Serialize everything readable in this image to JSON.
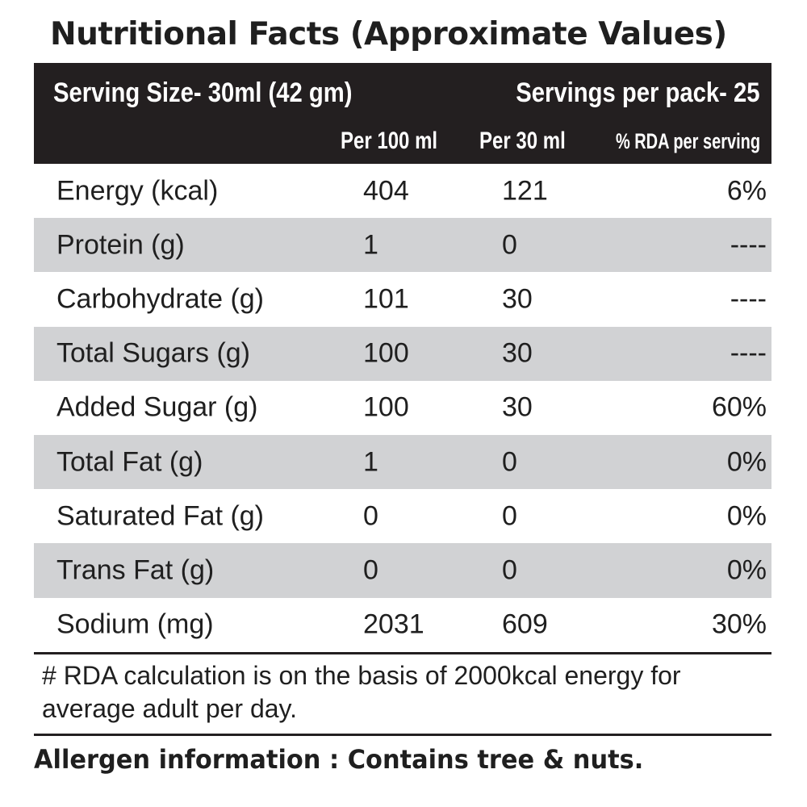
{
  "title": "Nutritional Facts (Approximate Values)",
  "header": {
    "serving_size": "Serving Size-  30ml (42 gm)",
    "servings_per_pack": "Servings per pack- 25",
    "columns": [
      "Per 100 ml",
      "Per 30 ml",
      "% RDA per serving"
    ]
  },
  "rows": [
    {
      "name": "Energy (kcal)",
      "per100": "404",
      "per30": "121",
      "rda": "6%"
    },
    {
      "name": "Protein (g)",
      "per100": "1",
      "per30": "0",
      "rda": "----"
    },
    {
      "name": "Carbohydrate (g)",
      "per100": "101",
      "per30": "30",
      "rda": "----"
    },
    {
      "name": "Total Sugars (g)",
      "per100": "100",
      "per30": "30",
      "rda": "----"
    },
    {
      "name": "Added Sugar (g)",
      "per100": "100",
      "per30": "30",
      "rda": "60%"
    },
    {
      "name": "Total Fat (g)",
      "per100": "1",
      "per30": "0",
      "rda": "0%"
    },
    {
      "name": "Saturated Fat (g)",
      "per100": "0",
      "per30": "0",
      "rda": "0%"
    },
    {
      "name": "Trans Fat (g)",
      "per100": "0",
      "per30": "0",
      "rda": "0%"
    },
    {
      "name": "Sodium (mg)",
      "per100": "2031",
      "per30": "609",
      "rda": "30%"
    }
  ],
  "footnote": "# RDA calculation is on the basis of 2000kcal energy for average adult per day.",
  "allergen": "Allergen information : Contains tree & nuts.",
  "colors": {
    "header_bg": "#231f20",
    "shade": "#d1d2d4"
  }
}
